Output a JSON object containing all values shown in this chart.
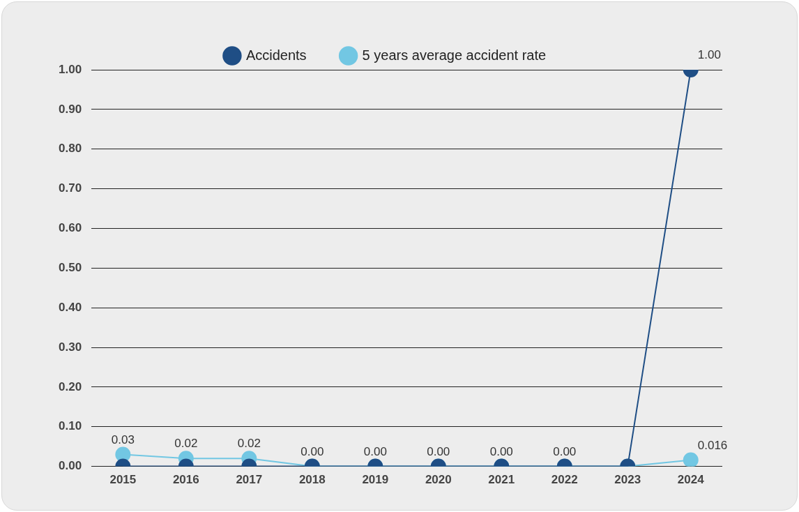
{
  "chart_data": {
    "type": "line",
    "categories": [
      "2015",
      "2016",
      "2017",
      "2018",
      "2019",
      "2020",
      "2021",
      "2022",
      "2023",
      "2024"
    ],
    "series": [
      {
        "name": "Accidents",
        "color": "#1f4e85",
        "values": [
          0,
          0,
          0,
          0,
          0,
          0,
          0,
          0,
          0,
          1.0
        ],
        "value_labels": [
          null,
          null,
          null,
          null,
          null,
          null,
          null,
          null,
          null,
          "1.00"
        ]
      },
      {
        "name": "5 years average accident rate",
        "color": "#72c7e3",
        "values": [
          0.03,
          0.02,
          0.02,
          0,
          0,
          0,
          0,
          0,
          0,
          0.016
        ],
        "value_labels": [
          "0.03",
          "0.02",
          "0.02",
          "0.00",
          "0.00",
          "0.00",
          "0.00",
          "0.00",
          null,
          "0.016"
        ]
      }
    ],
    "ylim": [
      0,
      1
    ],
    "yticks": [
      {
        "value": 0,
        "label": "0.00"
      },
      {
        "value": 0.1,
        "label": "0.10"
      },
      {
        "value": 0.2,
        "label": "0.20"
      },
      {
        "value": 0.3,
        "label": "0.30"
      },
      {
        "value": 0.4,
        "label": "0.40"
      },
      {
        "value": 0.5,
        "label": "0.50"
      },
      {
        "value": 0.6,
        "label": "0.60"
      },
      {
        "value": 0.7,
        "label": "0.70"
      },
      {
        "value": 0.8,
        "label": "0.80"
      },
      {
        "value": 0.9,
        "label": "0.90"
      },
      {
        "value": 1,
        "label": "1.00"
      }
    ],
    "grid": "y",
    "legend": "top",
    "marker": "circle",
    "line_style": "solid"
  }
}
